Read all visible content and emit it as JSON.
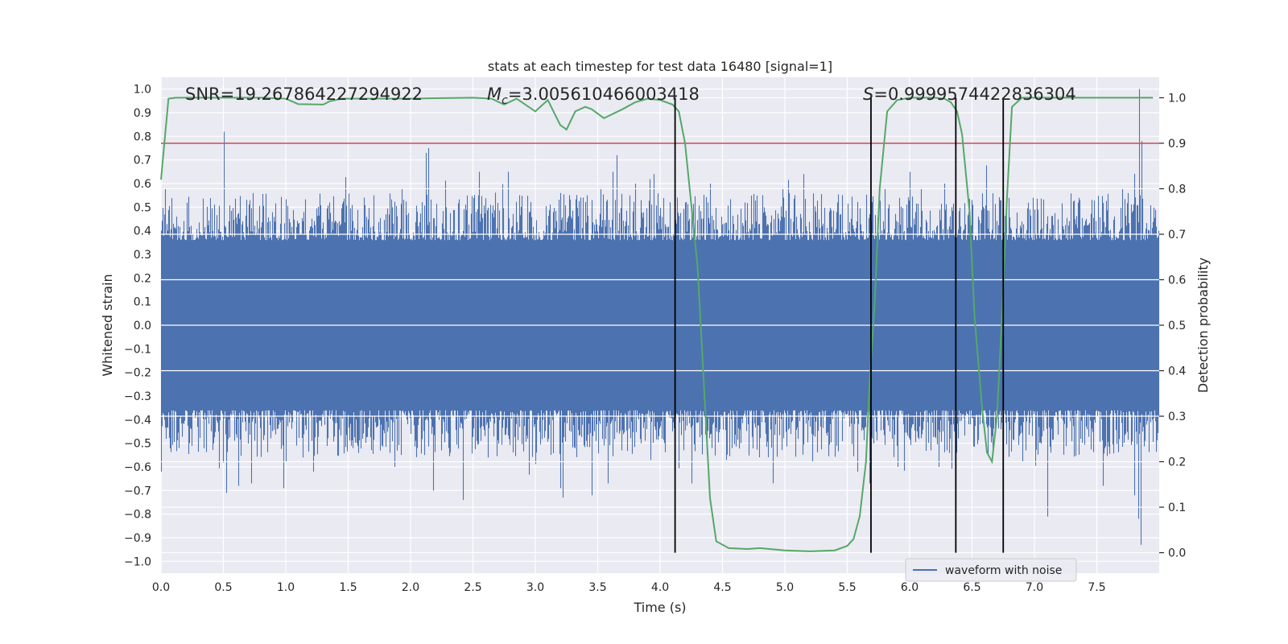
{
  "chart_data": {
    "type": "line",
    "title": "stats at each timestep for test data 16480 [signal=1]",
    "xlabel": "Time (s)",
    "ylabel": "Whitened strain",
    "ylabel_right": "Detection probability",
    "xlim": [
      0.0,
      8.0
    ],
    "ylim": [
      -1.05,
      1.05
    ],
    "ylim_right": [
      -0.045,
      1.045
    ],
    "x_ticks": [
      "0.0",
      "0.5",
      "1.0",
      "1.5",
      "2.0",
      "2.5",
      "3.0",
      "3.5",
      "4.0",
      "4.5",
      "5.0",
      "5.5",
      "6.0",
      "6.5",
      "7.0",
      "7.5"
    ],
    "y_ticks": [
      "1.0",
      "0.9",
      "0.8",
      "0.7",
      "0.6",
      "0.5",
      "0.4",
      "0.3",
      "0.2",
      "0.1",
      "0.0",
      "−0.1",
      "−0.2",
      "−0.3",
      "−0.4",
      "−0.5",
      "−0.6",
      "−0.7",
      "−0.8",
      "−0.9",
      "−1.0"
    ],
    "y_ticks_right": [
      "1.0",
      "0.9",
      "0.8",
      "0.7",
      "0.6",
      "0.5",
      "0.4",
      "0.3",
      "0.2",
      "0.1",
      "0.0"
    ],
    "annotations": {
      "snr": "SNR=19.267864227294922",
      "mc_symbol": "M",
      "mc_sub": "c",
      "mc_value": "=3.005610466003418",
      "s_symbol": "S",
      "s_value": "=0.9999574422836304"
    },
    "legend": {
      "label": "waveform with noise",
      "position": "lower-right"
    },
    "threshold": {
      "y_right": 0.9,
      "color": "#c44e52"
    },
    "vertical_lines": [
      4.12,
      5.69,
      6.37,
      6.75
    ],
    "vertical_lines_range_right": [
      0.0,
      1.0
    ],
    "waveform": {
      "name": "waveform with noise",
      "color": "#4c72b0",
      "duration_s": 8.0,
      "band_min": -0.36,
      "band_max": 0.36,
      "spikes_pos": [
        [
          0.03,
          0.58
        ],
        [
          0.12,
          0.46
        ],
        [
          0.5,
          0.82
        ],
        [
          0.65,
          0.44
        ],
        [
          1.14,
          0.48
        ],
        [
          1.35,
          0.52
        ],
        [
          1.7,
          0.55
        ],
        [
          1.93,
          0.58
        ],
        [
          2.12,
          0.73
        ],
        [
          2.14,
          0.75
        ],
        [
          2.54,
          0.55
        ],
        [
          2.78,
          0.65
        ],
        [
          3.2,
          0.56
        ],
        [
          3.45,
          0.53
        ],
        [
          3.52,
          0.58
        ],
        [
          3.62,
          0.65
        ],
        [
          3.65,
          0.72
        ],
        [
          3.8,
          0.6
        ],
        [
          3.95,
          0.64
        ],
        [
          4.4,
          0.6
        ],
        [
          4.68,
          0.52
        ],
        [
          4.98,
          0.58
        ],
        [
          5.15,
          0.64
        ],
        [
          5.42,
          0.52
        ],
        [
          5.8,
          0.58
        ],
        [
          6.0,
          0.65
        ],
        [
          6.28,
          0.6
        ],
        [
          6.5,
          0.51
        ],
        [
          6.72,
          0.53
        ],
        [
          7.0,
          0.49
        ],
        [
          7.35,
          0.52
        ],
        [
          7.7,
          0.58
        ],
        [
          7.84,
          1.0
        ],
        [
          7.86,
          0.78
        ]
      ],
      "spikes_neg": [
        [
          0.0,
          -0.62
        ],
        [
          0.14,
          -0.52
        ],
        [
          0.52,
          -0.71
        ],
        [
          0.62,
          -0.68
        ],
        [
          0.72,
          -0.67
        ],
        [
          0.98,
          -0.69
        ],
        [
          1.22,
          -0.62
        ],
        [
          1.87,
          -0.6
        ],
        [
          2.18,
          -0.7
        ],
        [
          2.42,
          -0.74
        ],
        [
          2.62,
          -0.56
        ],
        [
          3.2,
          -0.69
        ],
        [
          3.22,
          -0.73
        ],
        [
          3.45,
          -0.72
        ],
        [
          3.58,
          -0.67
        ],
        [
          3.92,
          -0.57
        ],
        [
          4.25,
          -0.67
        ],
        [
          4.53,
          -0.57
        ],
        [
          4.9,
          -0.67
        ],
        [
          5.22,
          -0.58
        ],
        [
          5.58,
          -0.62
        ],
        [
          5.68,
          -0.67
        ],
        [
          5.9,
          -0.6
        ],
        [
          6.23,
          -0.6
        ],
        [
          6.9,
          -0.58
        ],
        [
          7.1,
          -0.81
        ],
        [
          7.55,
          -0.68
        ],
        [
          7.8,
          -0.72
        ],
        [
          7.83,
          -0.82
        ],
        [
          7.85,
          -0.93
        ]
      ]
    },
    "probability": {
      "name": "detection probability",
      "color": "#55a868",
      "x": [
        0.0,
        0.06,
        0.12,
        0.2,
        0.5,
        0.8,
        1.0,
        1.1,
        1.3,
        1.35,
        1.45,
        1.6,
        1.8,
        2.0,
        2.2,
        2.5,
        2.65,
        2.75,
        2.85,
        3.0,
        3.1,
        3.2,
        3.25,
        3.32,
        3.4,
        3.45,
        3.55,
        3.7,
        3.8,
        3.9,
        4.0,
        4.1,
        4.15,
        4.2,
        4.3,
        4.4,
        4.45,
        4.55,
        4.7,
        4.8,
        5.0,
        5.2,
        5.4,
        5.5,
        5.55,
        5.6,
        5.65,
        5.68,
        5.72,
        5.76,
        5.82,
        5.9,
        6.0,
        6.2,
        6.28,
        6.33,
        6.38,
        6.42,
        6.48,
        6.52,
        6.58,
        6.62,
        6.66,
        6.7,
        6.74,
        6.78,
        6.82,
        6.9,
        7.0,
        7.5,
        7.95
      ],
      "y": [
        0.82,
        0.998,
        1.0,
        1.0,
        1.0,
        1.0,
        0.998,
        0.986,
        0.985,
        0.992,
        0.998,
        0.998,
        0.998,
        0.998,
        0.999,
        1.0,
        0.998,
        0.985,
        0.998,
        0.97,
        0.995,
        0.94,
        0.93,
        0.97,
        0.98,
        0.975,
        0.955,
        0.975,
        0.99,
        0.998,
        0.995,
        0.985,
        0.97,
        0.9,
        0.63,
        0.12,
        0.025,
        0.01,
        0.008,
        0.01,
        0.005,
        0.003,
        0.005,
        0.015,
        0.03,
        0.08,
        0.2,
        0.38,
        0.55,
        0.8,
        0.97,
        0.995,
        1.0,
        1.0,
        0.998,
        0.99,
        0.97,
        0.92,
        0.75,
        0.52,
        0.32,
        0.22,
        0.2,
        0.3,
        0.52,
        0.78,
        0.98,
        1.0,
        1.0,
        1.0,
        1.0
      ]
    }
  }
}
